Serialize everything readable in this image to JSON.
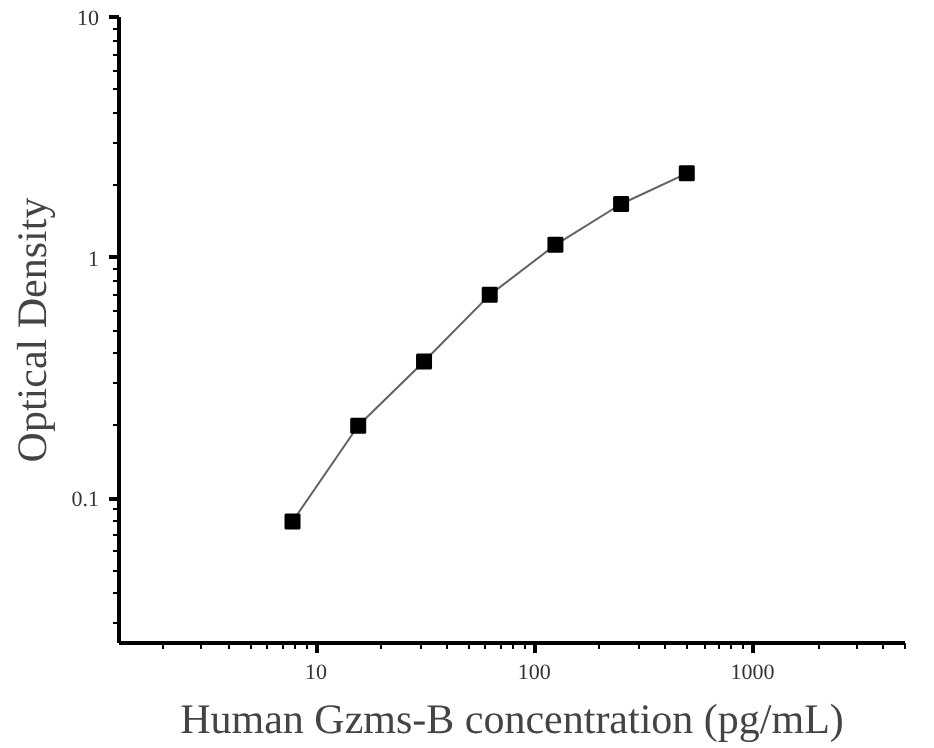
{
  "chart_data": {
    "type": "scatter",
    "xlabel": "Human Gzms-B concentration (pg/mL)",
    "ylabel": "Optical Density",
    "log": "xy",
    "grid": false,
    "marker": "square",
    "xlim": [
      1.25,
      5000
    ],
    "xticks": [
      10,
      100,
      1000
    ],
    "ylim": [
      0.025,
      10
    ],
    "yticks": [
      0.1,
      1,
      10
    ],
    "series": [
      {
        "type": "line",
        "color": "#606060",
        "line_style": "solid",
        "marker": "none",
        "x": [
          7.8,
          15.6,
          31.25,
          62.5,
          125,
          250,
          500
        ],
        "values": [
          0.08,
          0.2,
          0.37,
          0.7,
          1.13,
          1.67,
          2.24
        ]
      },
      {
        "color": "#000000",
        "x": [
          7.8,
          15.6,
          31.25,
          62.5,
          125,
          250,
          500
        ],
        "values": [
          0.08,
          0.2,
          0.37,
          0.7,
          1.13,
          1.67,
          2.24
        ]
      }
    ]
  }
}
